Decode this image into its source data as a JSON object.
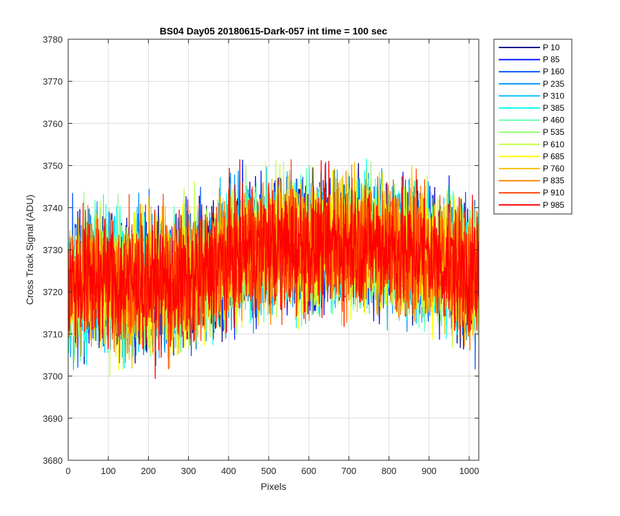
{
  "chart_data": {
    "type": "line",
    "title": "BS04 Day05 20180615-Dark-057 int time = 100 sec",
    "xlabel": "Pixels",
    "ylabel": "Cross Track Signal (ADU)",
    "xlim": [
      0,
      1024
    ],
    "ylim": [
      3680,
      3780
    ],
    "xticks": [
      0,
      100,
      200,
      300,
      400,
      500,
      600,
      700,
      800,
      900,
      1000
    ],
    "yticks": [
      3680,
      3690,
      3700,
      3710,
      3720,
      3730,
      3740,
      3750,
      3760,
      3770,
      3780
    ],
    "grid": true,
    "legend_position": "outside-right",
    "series_note": "1024 noisy samples per series centered near 3720-3733 ADU; values below are a baseline envelope per 64-pixel block",
    "envelope_x": [
      0,
      64,
      128,
      192,
      256,
      320,
      384,
      448,
      512,
      576,
      640,
      704,
      768,
      832,
      896,
      960,
      1024
    ],
    "envelope_mean": [
      3722,
      3723,
      3722,
      3722,
      3722,
      3724,
      3727,
      3730,
      3731,
      3731,
      3731,
      3732,
      3731,
      3730,
      3729,
      3726,
      3724
    ],
    "envelope_spread": 12,
    "series": [
      {
        "name": "P 10",
        "color": "#00008f"
      },
      {
        "name": "P 85",
        "color": "#0010ff"
      },
      {
        "name": "P 160",
        "color": "#0050ff"
      },
      {
        "name": "P 235",
        "color": "#0090ff"
      },
      {
        "name": "P 310",
        "color": "#00c0ff"
      },
      {
        "name": "P 385",
        "color": "#10ffef"
      },
      {
        "name": "P 460",
        "color": "#60ffb0"
      },
      {
        "name": "P 535",
        "color": "#90ff70"
      },
      {
        "name": "P 610",
        "color": "#c0ff40"
      },
      {
        "name": "P 685",
        "color": "#ffff00"
      },
      {
        "name": "P 760",
        "color": "#ffc000"
      },
      {
        "name": "P 835",
        "color": "#ff8000"
      },
      {
        "name": "P 910",
        "color": "#ff4000"
      },
      {
        "name": "P 985",
        "color": "#ff0000"
      }
    ]
  }
}
